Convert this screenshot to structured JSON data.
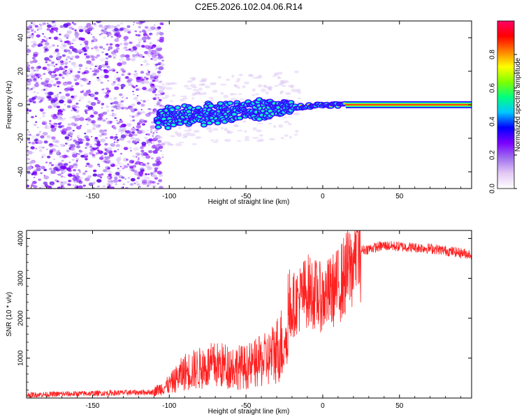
{
  "title": "C2E5.2026.102.04.06.R14",
  "chart_data": [
    {
      "type": "heatmap",
      "name": "spectrogram",
      "xlabel": "Height of straight line (km)",
      "ylabel": "Frequency (Hz)",
      "xlim": [
        -193,
        97
      ],
      "ylim": [
        -50,
        50
      ],
      "xticks": [
        -150,
        -100,
        -50,
        0,
        50
      ],
      "yticks": [
        -40,
        -20,
        0,
        20,
        40
      ],
      "colorbar": {
        "label": "Normalized spectral amplitude",
        "range": [
          0,
          1
        ],
        "ticks": [
          "0.0",
          "0.2",
          "0.4",
          "0.6",
          "0.8"
        ],
        "tick_values": [
          0.0,
          0.2,
          0.4,
          0.6,
          0.8
        ],
        "colors": [
          "#ffffff",
          "#e4c9f5",
          "#a070ee",
          "#7a00ff",
          "#0000ff",
          "#00c8ff",
          "#00ff7f",
          "#7fff00",
          "#ffff00",
          "#ff8000",
          "#ff0000",
          "#ff0066"
        ]
      },
      "features": {
        "noise_region_km": [
          -193,
          -108
        ],
        "carrier_start_km": -108,
        "carrier_freq_at_start_hz": -8,
        "carrier_freq_at_zero_hz": 0,
        "steady_carrier_from_km": 15
      }
    },
    {
      "type": "line",
      "name": "snr",
      "xlabel": "Height of straight line (km)",
      "ylabel": "SNR (10 * v/v)",
      "xlim": [
        -193,
        97
      ],
      "ylim": [
        0,
        4200
      ],
      "xticks": [
        -150,
        -100,
        -50,
        0,
        50
      ],
      "yticks": [
        1000,
        2000,
        3000,
        4000
      ],
      "color": "#ff2020",
      "series_profile": [
        {
          "x": -193,
          "y": 80
        },
        {
          "x": -110,
          "y": 150
        },
        {
          "x": -100,
          "y": 300
        },
        {
          "x": -90,
          "y": 600
        },
        {
          "x": -70,
          "y": 750
        },
        {
          "x": -50,
          "y": 700
        },
        {
          "x": -35,
          "y": 900
        },
        {
          "x": -25,
          "y": 1300
        },
        {
          "x": -20,
          "y": 2300
        },
        {
          "x": -10,
          "y": 2700
        },
        {
          "x": 0,
          "y": 2500
        },
        {
          "x": 10,
          "y": 2800
        },
        {
          "x": 20,
          "y": 3400
        },
        {
          "x": 25,
          "y": 3700
        },
        {
          "x": 40,
          "y": 3820
        },
        {
          "x": 70,
          "y": 3750
        },
        {
          "x": 97,
          "y": 3600
        }
      ]
    }
  ]
}
